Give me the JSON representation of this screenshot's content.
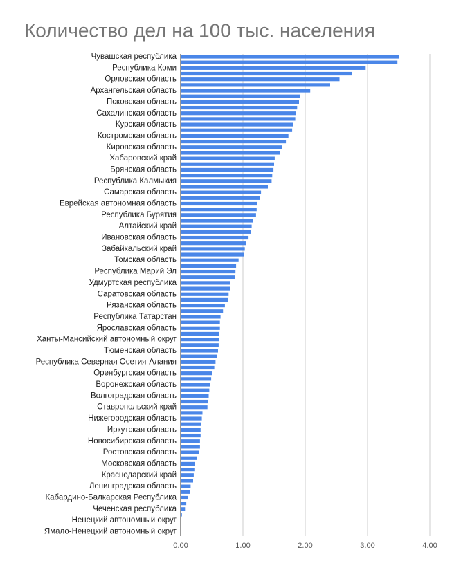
{
  "chart_data": {
    "type": "hbar",
    "title": "Количество дел на 100 тыс. населения",
    "categories": [
      "Чувашская республика",
      null,
      "Республика Коми",
      null,
      "Орловская область",
      null,
      "Архангельская область",
      null,
      "Псковская область",
      null,
      "Сахалинская область",
      null,
      "Курская область",
      null,
      "Костромская область",
      null,
      "Кировская область",
      null,
      "Хабаровский край",
      null,
      "Брянская область",
      null,
      "Республика Калмыкия",
      null,
      "Самарская область",
      null,
      "Еврейская автономная область",
      null,
      "Республика Бурятия",
      null,
      "Алтайский край",
      null,
      "Ивановская область",
      null,
      "Забайкальский край",
      null,
      "Томская область",
      null,
      "Республика Марий Эл",
      null,
      "Удмуртская республика",
      null,
      "Саратовская область",
      null,
      "Рязанская область",
      null,
      "Республика Татарстан",
      null,
      "Ярославская область",
      null,
      "Ханты-Мансийский автономный округ",
      null,
      "Тюменская область",
      null,
      "Республика Северная Осетия-Алания",
      null,
      "Оренбургская область",
      null,
      "Воронежская область",
      null,
      "Волгоградская область",
      null,
      "Ставропольский край",
      null,
      "Нижегородская область",
      null,
      "Иркутская область",
      null,
      "Новосибирская область",
      null,
      "Ростовская область",
      null,
      "Московская область",
      null,
      "Краснодарский край",
      null,
      "Ленинградская область",
      null,
      "Кабардино-Балкарская Республика",
      null,
      "Чеченская республика",
      null,
      "Ненецкий автономный округ",
      null,
      "Ямало-Ненецкий автономный округ"
    ],
    "values": [
      3.5,
      3.48,
      2.97,
      2.75,
      2.55,
      2.4,
      2.08,
      1.92,
      1.9,
      1.87,
      1.85,
      1.84,
      1.8,
      1.79,
      1.73,
      1.69,
      1.63,
      1.59,
      1.51,
      1.5,
      1.49,
      1.47,
      1.46,
      1.4,
      1.29,
      1.27,
      1.23,
      1.22,
      1.21,
      1.16,
      1.14,
      1.13,
      1.09,
      1.05,
      1.03,
      1.02,
      0.93,
      0.89,
      0.88,
      0.87,
      0.8,
      0.79,
      0.77,
      0.76,
      0.71,
      0.68,
      0.64,
      0.63,
      0.63,
      0.62,
      0.62,
      0.61,
      0.6,
      0.58,
      0.56,
      0.54,
      0.5,
      0.49,
      0.47,
      0.46,
      0.45,
      0.44,
      0.43,
      0.35,
      0.34,
      0.33,
      0.32,
      0.32,
      0.31,
      0.31,
      0.3,
      0.26,
      0.23,
      0.22,
      0.21,
      0.2,
      0.16,
      0.15,
      0.12,
      0.09,
      0.07,
      0.02,
      0,
      0,
      0
    ],
    "color": "#4a86e8",
    "xlim": [
      0,
      4
    ],
    "xticks": [
      {
        "value": 0,
        "label": "0.00"
      },
      {
        "value": 1,
        "label": "1.00"
      },
      {
        "value": 2,
        "label": "2.00"
      },
      {
        "value": 3,
        "label": "3.00"
      },
      {
        "value": 4,
        "label": "4.00"
      }
    ],
    "grid": true
  }
}
